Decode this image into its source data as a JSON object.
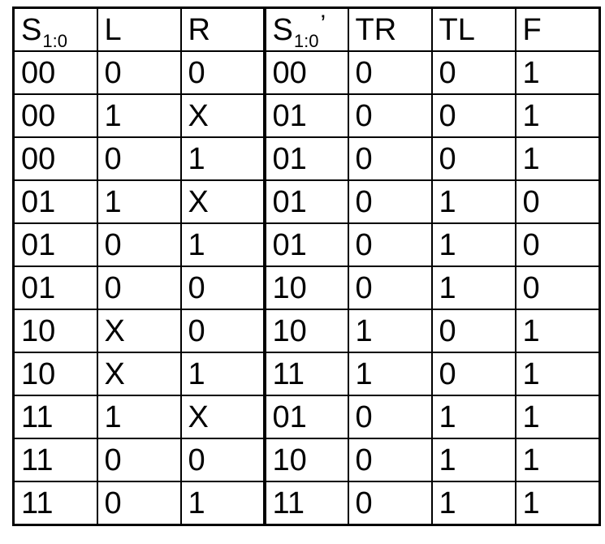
{
  "headers": {
    "s_base": "S",
    "s_sub": "1:0",
    "l": "L",
    "r": "R",
    "sn_base": "S",
    "sn_sub": "1:0",
    "sn_prime": "’",
    "tr": "TR",
    "tl": "TL",
    "f": "F"
  },
  "rows": [
    [
      "00",
      "0",
      "0",
      "00",
      "0",
      "0",
      "1"
    ],
    [
      "00",
      "1",
      "X",
      "01",
      "0",
      "0",
      "1"
    ],
    [
      "00",
      "0",
      "1",
      "01",
      "0",
      "0",
      "1"
    ],
    [
      "01",
      "1",
      "X",
      "01",
      "0",
      "1",
      "0"
    ],
    [
      "01",
      "0",
      "1",
      "01",
      "0",
      "1",
      "0"
    ],
    [
      "01",
      "0",
      "0",
      "10",
      "0",
      "1",
      "0"
    ],
    [
      "10",
      "X",
      "0",
      "10",
      "1",
      "0",
      "1"
    ],
    [
      "10",
      "X",
      "1",
      "11",
      "1",
      "0",
      "1"
    ],
    [
      "11",
      "1",
      "X",
      "01",
      "0",
      "1",
      "1"
    ],
    [
      "11",
      "0",
      "0",
      "10",
      "0",
      "1",
      "1"
    ],
    [
      "11",
      "0",
      "1",
      "11",
      "0",
      "1",
      "1"
    ]
  ]
}
